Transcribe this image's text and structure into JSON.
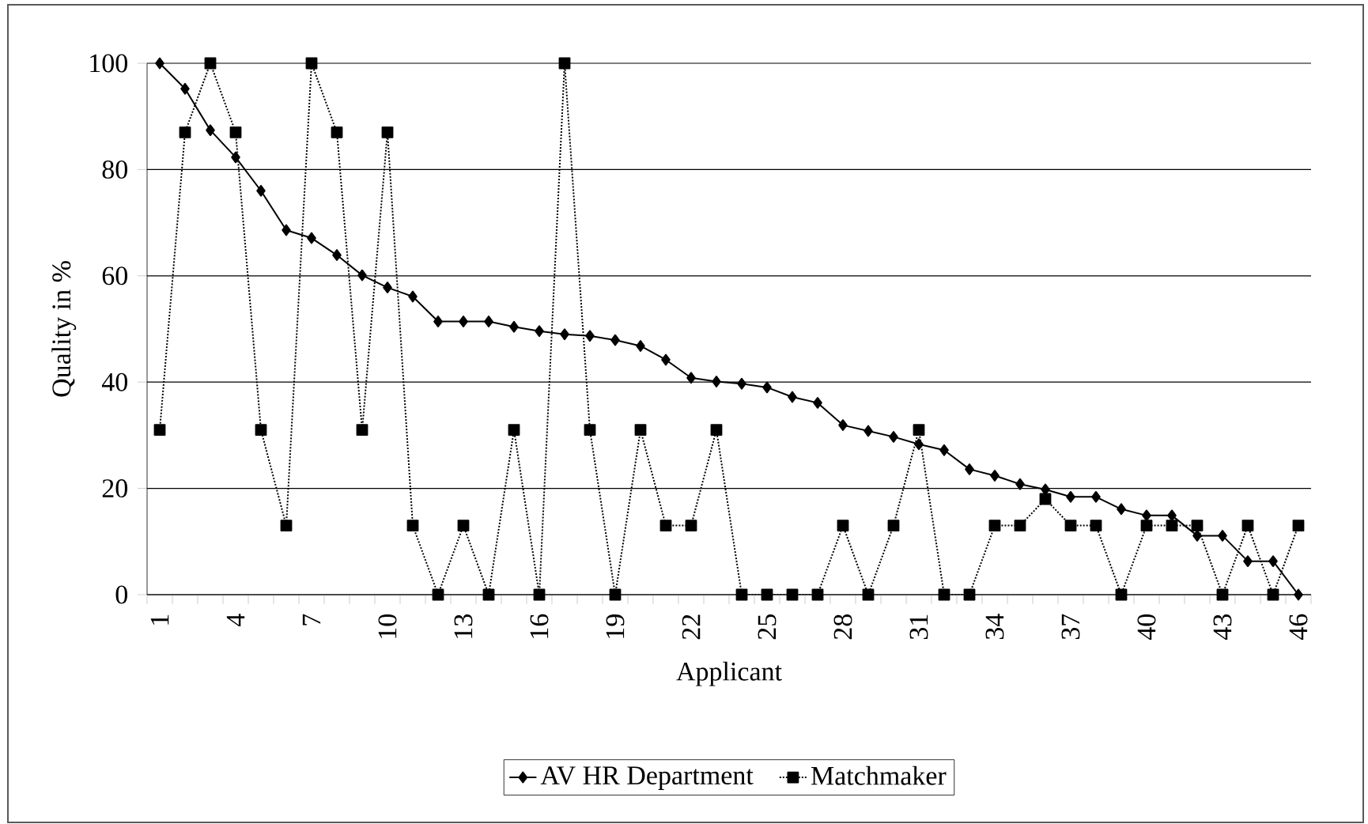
{
  "chart_data": {
    "type": "line",
    "xlabel": "Applicant",
    "ylabel": "Quality in %",
    "categories": [
      "1",
      null,
      null,
      "4",
      null,
      null,
      "7",
      null,
      null,
      "10",
      null,
      null,
      "13",
      null,
      null,
      "16",
      null,
      null,
      "19",
      null,
      null,
      "22",
      null,
      null,
      "25",
      null,
      null,
      "28",
      null,
      null,
      "31",
      null,
      null,
      "34",
      null,
      null,
      "37",
      null,
      null,
      "40",
      null,
      null,
      "43",
      null,
      null,
      "46"
    ],
    "series": [
      {
        "name": "AV HR Department",
        "color": "#000000",
        "marker": "diamond",
        "line_style": "solid",
        "values": [
          100,
          95.2,
          87.4,
          82.3,
          76.0,
          68.6,
          67.1,
          63.9,
          60.1,
          57.8,
          56.1,
          51.4,
          51.4,
          51.4,
          50.4,
          49.6,
          49.0,
          48.7,
          47.9,
          46.8,
          44.2,
          40.8,
          40.1,
          39.7,
          39.0,
          37.2,
          36.1,
          31.9,
          30.8,
          29.7,
          28.3,
          27.2,
          23.6,
          22.4,
          20.8,
          19.8,
          18.4,
          18.4,
          16.1,
          14.9,
          14.9,
          11.1,
          11.1,
          6.3,
          6.3,
          0
        ]
      },
      {
        "name": "Matchmaker",
        "color": "#000000",
        "marker": "square",
        "line_style": "dotted",
        "values": [
          31,
          87,
          100,
          87,
          31,
          13,
          100,
          87,
          31,
          87,
          13,
          0,
          13,
          0,
          31,
          0,
          100,
          31,
          0,
          31,
          13,
          13,
          31,
          0,
          0,
          0,
          0,
          13,
          0,
          13,
          31,
          0,
          0,
          13,
          13,
          18,
          13,
          13,
          0,
          13,
          13,
          13,
          0,
          13,
          0,
          13
        ]
      }
    ],
    "ylim": [
      0,
      100
    ],
    "yticks": [
      0,
      20,
      40,
      60,
      80,
      100
    ],
    "grid": "y",
    "legend": "bottom"
  }
}
